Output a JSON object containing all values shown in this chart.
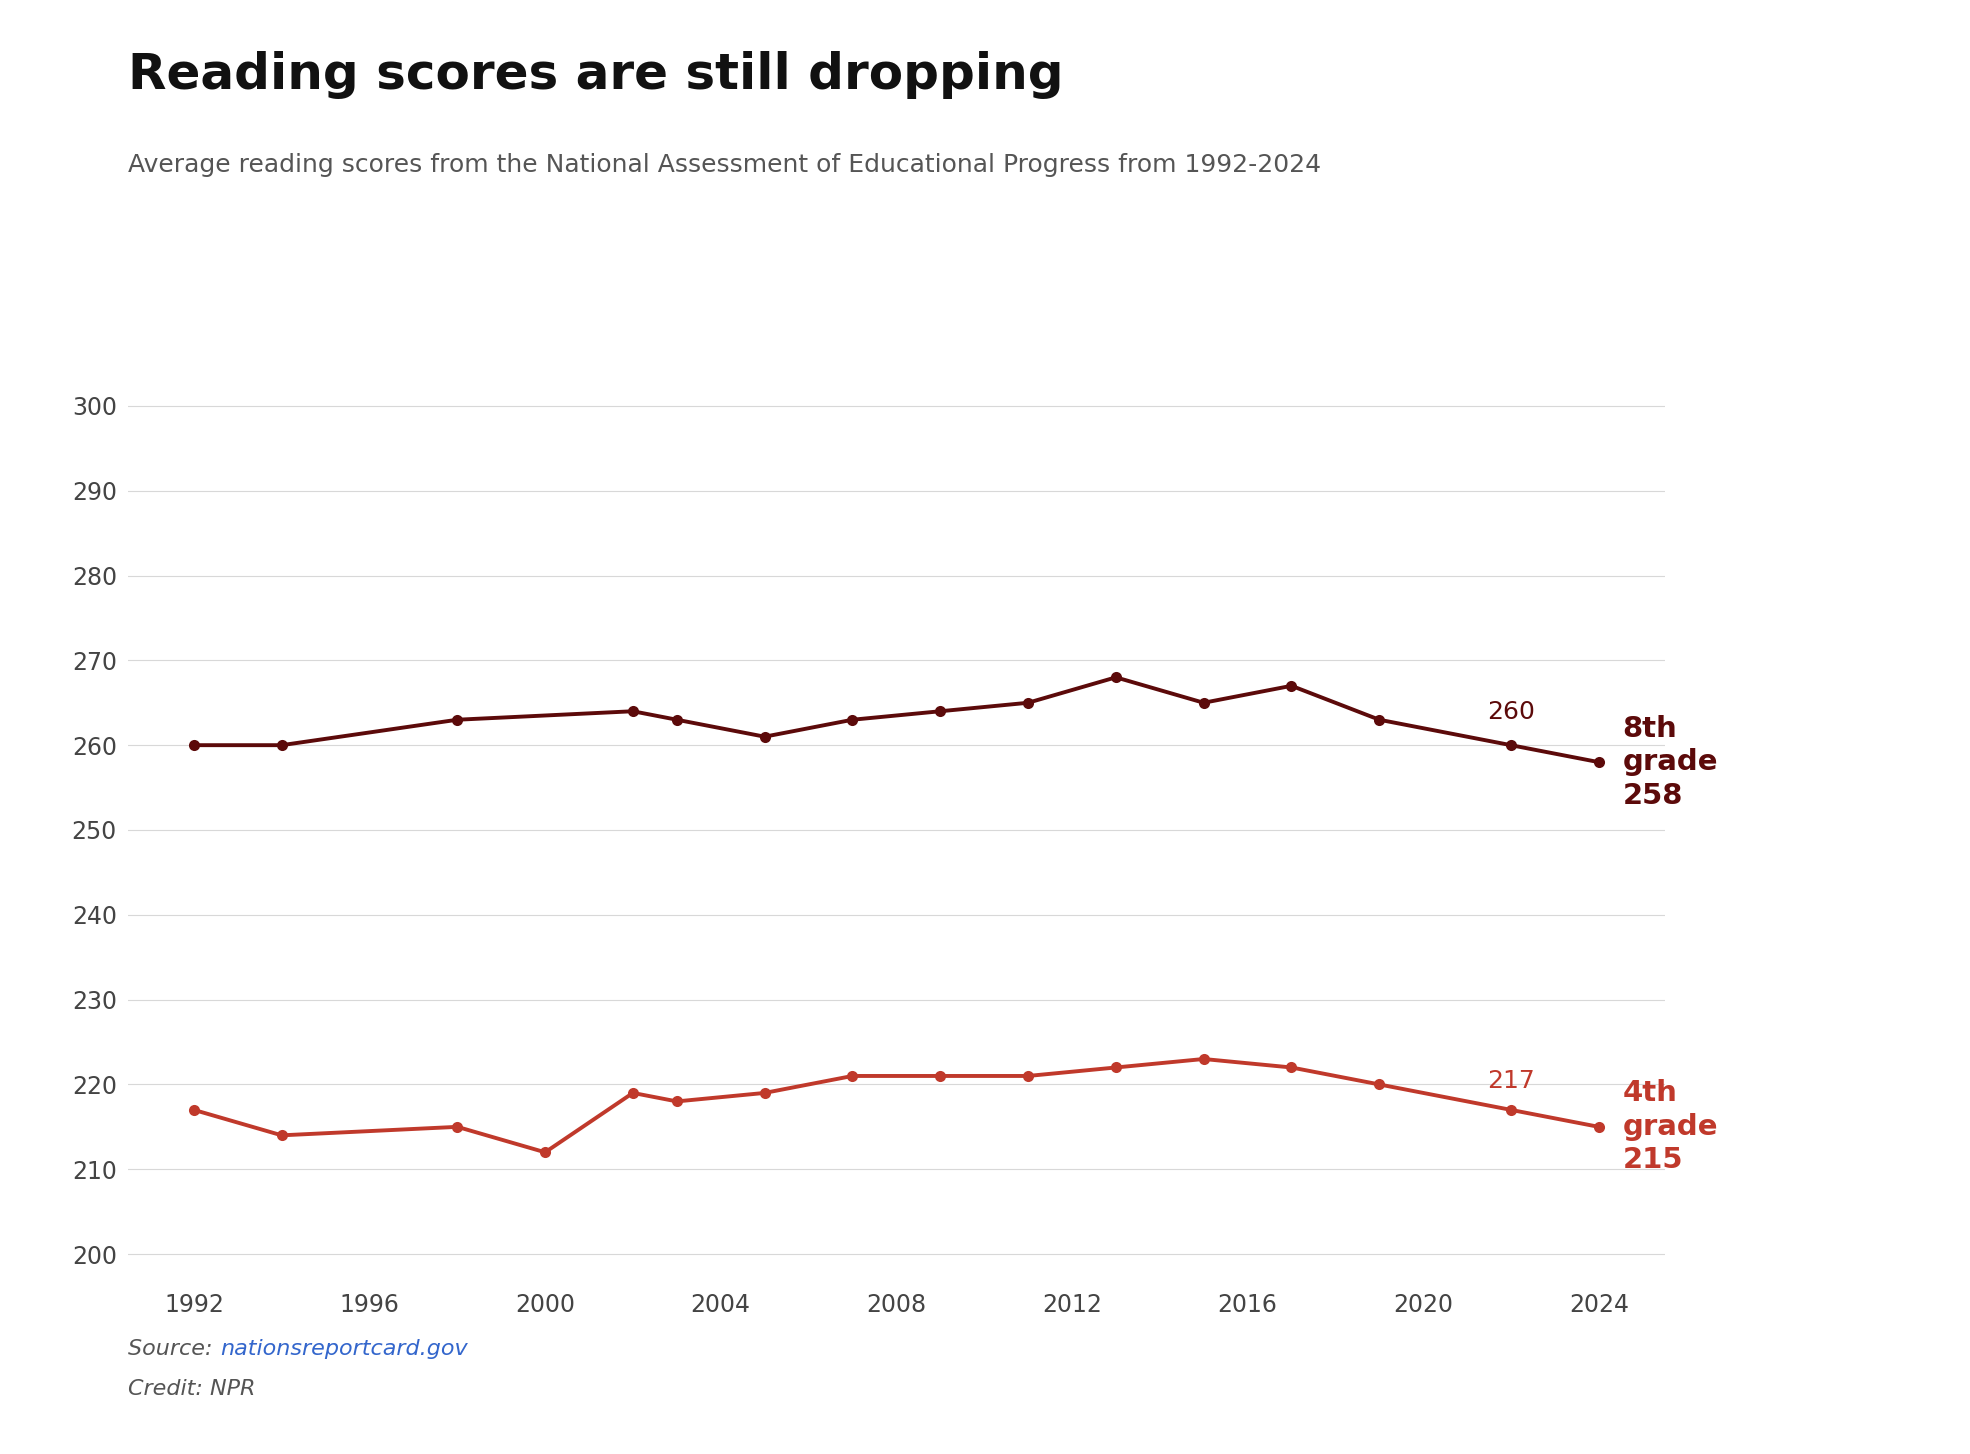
{
  "title": "Reading scores are still dropping",
  "subtitle": "Average reading scores from the National Assessment of Educational Progress from 1992-2024",
  "source_label": "Source: ",
  "source_link": "nationsreportcard.gov",
  "credit_text": "Credit: NPR",
  "grade8_years": [
    1992,
    1994,
    1998,
    2002,
    2003,
    2005,
    2007,
    2009,
    2011,
    2013,
    2015,
    2017,
    2019,
    2022,
    2024
  ],
  "grade8_scores": [
    260,
    260,
    263,
    264,
    263,
    261,
    263,
    264,
    265,
    268,
    265,
    267,
    263,
    260,
    258
  ],
  "grade4_years": [
    1992,
    1994,
    1998,
    2000,
    2002,
    2003,
    2005,
    2007,
    2009,
    2011,
    2013,
    2015,
    2017,
    2019,
    2022,
    2024
  ],
  "grade4_scores": [
    217,
    214,
    215,
    212,
    219,
    218,
    219,
    221,
    221,
    221,
    222,
    223,
    222,
    220,
    217,
    215
  ],
  "grade8_color": "#5C0A0A",
  "grade4_color": "#C0392B",
  "annotation8_color": "#5C0A0A",
  "annotation4_color": "#C0392B",
  "ylim": [
    197,
    305
  ],
  "yticks": [
    200,
    210,
    220,
    230,
    240,
    250,
    260,
    270,
    280,
    290,
    300
  ],
  "xlim": [
    1990.5,
    2025.5
  ],
  "xticks": [
    1992,
    1996,
    2000,
    2004,
    2008,
    2012,
    2016,
    2020,
    2024
  ],
  "background_color": "#ffffff",
  "grid_color": "#d8d8d8",
  "title_fontsize": 36,
  "subtitle_fontsize": 18,
  "tick_fontsize": 17,
  "annotation_fontsize": 18,
  "label_fontsize": 21,
  "source_fontsize": 16,
  "line_width": 2.8,
  "marker_size": 8
}
